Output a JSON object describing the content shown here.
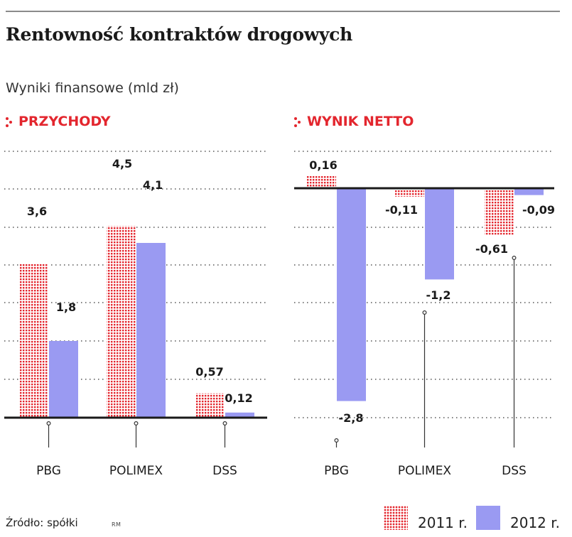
{
  "title": "Rentowność kontraktów drogowych",
  "subtitle": "Wyniki finansowe (mld zł)",
  "source": "Źródło: spółki",
  "credit": "RM",
  "colors": {
    "accent": "#e3262e",
    "series_2011": "#e3262e",
    "series_2012": "#9a9af2",
    "axis": "#1a1a1a",
    "grid": "#555555"
  },
  "legend": [
    {
      "label": "2011 r.",
      "style": "dotted-red"
    },
    {
      "label": "2012 r.",
      "style": "solid-lavender"
    }
  ],
  "chart_data": [
    {
      "type": "bar",
      "title": "PRZYCHODY",
      "categories": [
        "PBG",
        "POLIMEX",
        "DSS"
      ],
      "series": [
        {
          "name": "2011 r.",
          "values": [
            3.6,
            4.5,
            0.57
          ],
          "labels": [
            "3,6",
            "4,5",
            "0,57"
          ]
        },
        {
          "name": "2012 r.",
          "values": [
            1.8,
            4.1,
            0.12
          ],
          "labels": [
            "1,8",
            "4,1",
            "0,12"
          ]
        }
      ],
      "ylim": [
        0,
        5.2
      ],
      "grid": true,
      "xlabel": "",
      "ylabel": ""
    },
    {
      "type": "bar",
      "title": "WYNIK NETTO",
      "categories": [
        "PBG",
        "POLIMEX",
        "DSS"
      ],
      "series": [
        {
          "name": "2011 r.",
          "values": [
            0.16,
            -0.11,
            -0.61
          ],
          "labels": [
            "0,16",
            "-0,11",
            "-0,61"
          ]
        },
        {
          "name": "2012 r.",
          "values": [
            -2.8,
            -1.2,
            -0.09
          ],
          "labels": [
            "-2,8",
            "-1,2",
            "-0,09"
          ]
        }
      ],
      "ylim": [
        -3.0,
        0.5
      ],
      "grid": true,
      "xlabel": "",
      "ylabel": ""
    }
  ]
}
